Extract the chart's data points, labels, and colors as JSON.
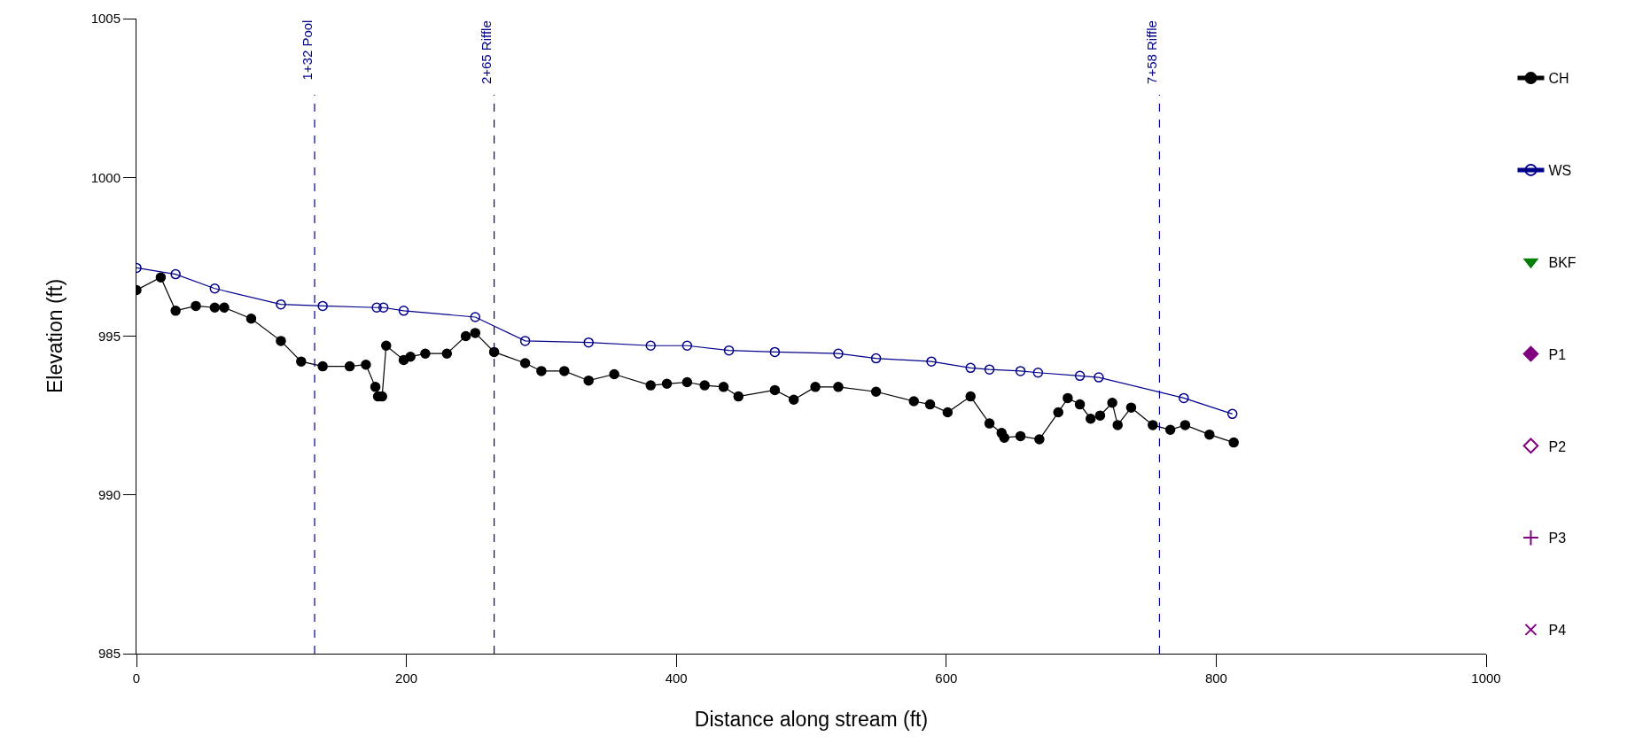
{
  "chart_data": {
    "type": "line",
    "xlabel": "Distance along stream (ft)",
    "ylabel": "Elevation (ft)",
    "xlim": [
      0,
      1000
    ],
    "xticks": [
      0,
      200,
      400,
      600,
      800,
      1000
    ],
    "ylim": [
      985,
      1005
    ],
    "yticks": [
      985,
      990,
      995,
      1000,
      1005
    ],
    "legend": "right",
    "series": [
      {
        "name": "CH",
        "color": "#000000",
        "marker": "circle",
        "x": [
          0,
          18,
          29,
          44,
          58,
          65,
          85,
          107,
          122,
          138,
          158,
          170,
          177,
          179,
          182,
          185,
          198,
          203,
          214,
          230,
          244,
          251,
          265,
          288,
          300,
          317,
          335,
          354,
          381,
          393,
          408,
          421,
          435,
          446,
          473,
          487,
          503,
          520,
          548,
          576,
          588,
          601,
          618,
          632,
          641,
          643,
          655,
          669,
          683,
          690,
          699,
          707,
          714,
          723,
          727,
          737,
          753,
          766,
          777,
          795,
          813
        ],
        "values": [
          996.45,
          996.85,
          995.8,
          995.95,
          995.9,
          995.9,
          995.55,
          994.85,
          994.2,
          994.05,
          994.05,
          994.1,
          993.4,
          993.1,
          993.1,
          994.7,
          994.25,
          994.35,
          994.45,
          994.45,
          995.0,
          995.1,
          994.5,
          994.15,
          993.9,
          993.9,
          993.6,
          993.8,
          993.45,
          993.5,
          993.55,
          993.45,
          993.4,
          993.1,
          993.3,
          993.0,
          993.4,
          993.4,
          993.25,
          992.95,
          992.85,
          992.6,
          993.1,
          992.25,
          991.95,
          991.8,
          991.85,
          991.75,
          992.6,
          993.05,
          992.85,
          992.4,
          992.5,
          992.9,
          992.2,
          992.75,
          992.2,
          992.05,
          992.2,
          991.9,
          991.65
        ]
      },
      {
        "name": "WS",
        "color": "#00008b",
        "marker": "circle-open",
        "x": [
          0,
          29,
          58,
          107,
          138,
          178,
          183,
          198,
          251,
          288,
          335,
          381,
          408,
          439,
          473,
          520,
          548,
          589,
          618,
          632,
          655,
          668,
          699,
          713,
          776,
          812
        ],
        "values": [
          997.15,
          996.95,
          996.5,
          996.0,
          995.95,
          995.9,
          995.9,
          995.8,
          995.6,
          994.85,
          994.8,
          994.7,
          994.7,
          994.55,
          994.5,
          994.45,
          994.3,
          994.2,
          994.0,
          993.95,
          993.9,
          993.85,
          993.75,
          993.7,
          993.05,
          992.55
        ]
      },
      {
        "name": "BKF",
        "color": "#008000",
        "marker": "triangle-down"
      },
      {
        "name": "P1",
        "color": "#800080",
        "marker": "diamond"
      },
      {
        "name": "P2",
        "color": "#800080",
        "marker": "diamond-open"
      },
      {
        "name": "P3",
        "color": "#800080",
        "marker": "cross-thin-open"
      },
      {
        "name": "P4",
        "color": "#800080",
        "marker": "x-thin-open"
      }
    ],
    "ref_lines": [
      {
        "axis": "x",
        "value": 132,
        "label": "1+32 Pool",
        "color": "#00008b",
        "line_style": "dashed"
      },
      {
        "axis": "x",
        "value": 265,
        "label": "2+65 Riffle",
        "color": "#00008b",
        "line_style": "dashed"
      },
      {
        "axis": "x",
        "value": 758,
        "label": "7+58 Riffle",
        "color": "#00008b",
        "line_style": "dashed"
      }
    ]
  }
}
